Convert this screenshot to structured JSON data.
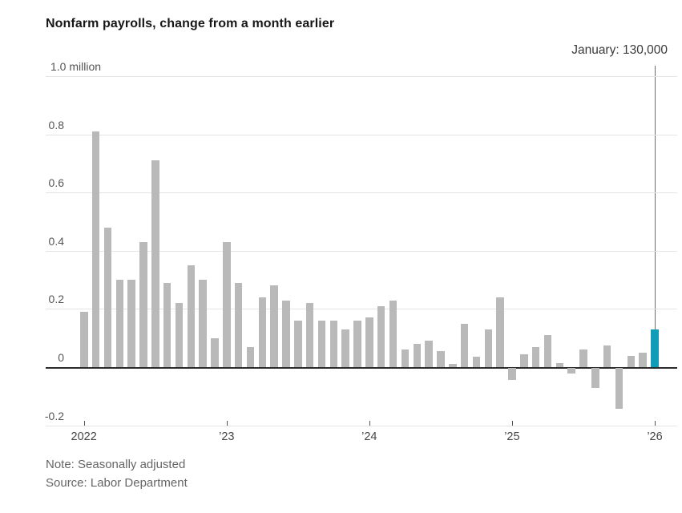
{
  "header": {
    "title": "Nonfarm payrolls, change from a month earlier"
  },
  "annotation": {
    "label": "January: 130,000"
  },
  "footer": {
    "note": "Note: Seasonally adjusted",
    "source": "Source: Labor Department"
  },
  "colors": {
    "bar": "#b9b9b9",
    "highlight": "#119db8",
    "gridline": "#e4e4e4",
    "zero_line": "#2b2b2b",
    "annotation_line": "#6e6e6e"
  },
  "chart_data": {
    "type": "bar",
    "title": "Nonfarm payrolls, change from a month earlier",
    "unit": "million jobs, monthly change",
    "ylim": [
      -0.2,
      1.0
    ],
    "grid": true,
    "months": [
      "2022-01",
      "2022-02",
      "2022-03",
      "2022-04",
      "2022-05",
      "2022-06",
      "2022-07",
      "2022-08",
      "2022-09",
      "2022-10",
      "2022-11",
      "2022-12",
      "2023-01",
      "2023-02",
      "2023-03",
      "2023-04",
      "2023-05",
      "2023-06",
      "2023-07",
      "2023-08",
      "2023-09",
      "2023-10",
      "2023-11",
      "2023-12",
      "2024-01",
      "2024-02",
      "2024-03",
      "2024-04",
      "2024-05",
      "2024-06",
      "2024-07",
      "2024-08",
      "2024-09",
      "2024-10",
      "2024-11",
      "2024-12",
      "2025-01",
      "2025-02",
      "2025-03",
      "2025-04",
      "2025-05",
      "2025-06",
      "2025-07",
      "2025-08",
      "2025-09",
      "2025-10",
      "2025-11",
      "2025-12",
      "2026-01"
    ],
    "values": [
      0.19,
      0.81,
      0.48,
      0.3,
      0.3,
      0.43,
      0.71,
      0.29,
      0.22,
      0.35,
      0.3,
      0.1,
      0.43,
      0.29,
      0.07,
      0.24,
      0.28,
      0.23,
      0.16,
      0.22,
      0.16,
      0.16,
      0.13,
      0.16,
      0.17,
      0.21,
      0.23,
      0.06,
      0.08,
      0.09,
      0.055,
      0.01,
      0.15,
      0.035,
      0.13,
      0.24,
      -0.04,
      0.045,
      0.07,
      0.11,
      0.015,
      -0.02,
      0.06,
      -0.07,
      0.075,
      -0.14,
      0.04,
      0.05,
      0.13
    ],
    "highlight_index": 48,
    "highlight_label": "January: 130,000",
    "highlight_value": 0.13,
    "yticks": [
      {
        "label": "1.0 million",
        "value": 1.0
      },
      {
        "label": "0.8",
        "value": 0.8
      },
      {
        "label": "0.6",
        "value": 0.6
      },
      {
        "label": "0.4",
        "value": 0.4
      },
      {
        "label": "0.2",
        "value": 0.2
      },
      {
        "label": "0",
        "value": 0
      },
      {
        "label": "-0.2",
        "value": -0.2
      }
    ],
    "xticks": [
      {
        "label": "2022",
        "month": 0
      },
      {
        "label": "’23",
        "month": 12
      },
      {
        "label": "’24",
        "month": 24
      },
      {
        "label": "’25",
        "month": 36
      },
      {
        "label": "’26",
        "month": 48
      }
    ],
    "legend": "none"
  }
}
